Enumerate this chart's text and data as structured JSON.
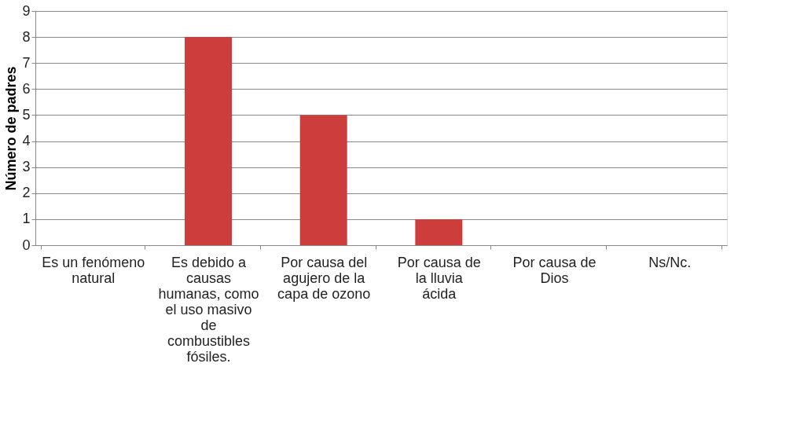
{
  "chart_data": {
    "type": "bar",
    "ylabel": "Número de padres",
    "categories": [
      "Es un fenómeno natural",
      "Es debido a causas humanas, como el uso masivo de combustibles fósiles.",
      "Por causa del agujero de la capa de ozono",
      "Por causa de la lluvia ácida",
      "Por causa de Dios",
      "Ns/Nc."
    ],
    "values": [
      0,
      8,
      5,
      1,
      0,
      0
    ],
    "color": "#cc3d3b",
    "ylim": [
      0,
      9
    ],
    "yticks": [
      0,
      1,
      2,
      3,
      4,
      5,
      6,
      7,
      8,
      9
    ],
    "grid": "y"
  }
}
